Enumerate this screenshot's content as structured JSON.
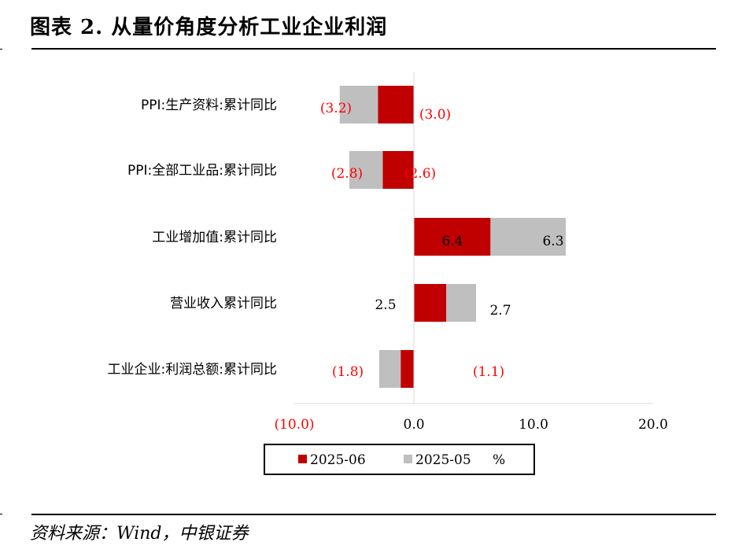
{
  "title": "图表 2. 从量价角度分析工业企业利润",
  "source": "资料来源：Wind，中银证券",
  "colors": {
    "current": "#C00000",
    "previous": "#BFBFBF",
    "negative_label": "#FF0000",
    "positive_label": "#000000"
  },
  "chart_data": {
    "type": "bar",
    "orientation": "horizontal",
    "categories": [
      "PPI:生产资料:累计同比",
      "PPI:全部工业品:累计同比",
      "工业增加值:累计同比",
      "营业收入累计同比",
      "工业企业:利润总额:累计同比"
    ],
    "series": [
      {
        "name": "2025-06",
        "values": [
          -3.0,
          -2.6,
          6.4,
          2.7,
          -1.1
        ],
        "labels": [
          "(3.0)",
          "(2.6)",
          "6.4",
          "2.7",
          "(1.1)"
        ]
      },
      {
        "name": "2025-05",
        "values": [
          -3.2,
          -2.8,
          6.3,
          2.5,
          -1.8
        ],
        "labels": [
          "(3.2)",
          "(2.8)",
          "6.3",
          "2.5",
          "(1.8)"
        ]
      }
    ],
    "stacked": true,
    "xlim": [
      -10,
      20
    ],
    "xticks": [
      -10,
      0,
      10,
      20
    ],
    "xtick_labels": [
      "(10.0)",
      "0.0",
      "10.0",
      "20.0"
    ],
    "legend": {
      "position": "bottom",
      "items": [
        "2025-06",
        "2025-05"
      ],
      "unit": "%"
    },
    "grid": false
  }
}
